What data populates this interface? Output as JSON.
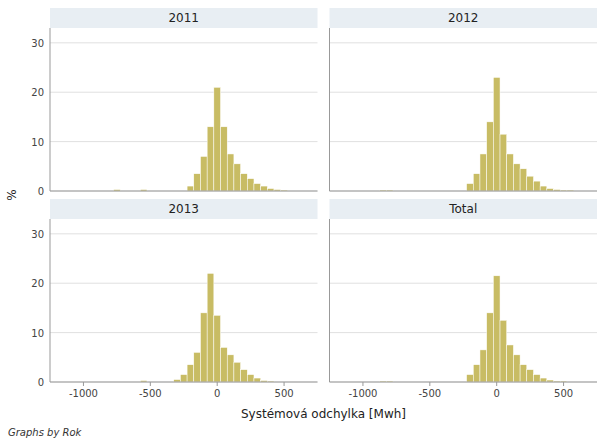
{
  "chart_data": [
    {
      "type": "histogram",
      "title": "2011",
      "color": "#c8bc64",
      "bin_width": 50,
      "x": [
        -750,
        -550,
        -200,
        -150,
        -100,
        -50,
        0,
        50,
        100,
        150,
        200,
        250,
        300,
        350,
        400,
        450,
        500
      ],
      "values": [
        0.3,
        0.3,
        1.0,
        3.5,
        7.0,
        13.0,
        21.0,
        13.0,
        7.5,
        5.5,
        3.5,
        2.5,
        1.5,
        1.0,
        0.5,
        0.3,
        0.2
      ],
      "xlim": [
        -1250,
        750
      ],
      "xticks": [
        -1000,
        -500,
        0,
        500
      ],
      "ylim": [
        0,
        33
      ],
      "yticks": [
        0,
        10,
        20,
        30
      ],
      "grid": true,
      "tick_labels": "y"
    },
    {
      "type": "histogram",
      "title": "2012",
      "color": "#c8bc64",
      "bin_width": 50,
      "x": [
        -850,
        -800,
        -200,
        -150,
        -100,
        -50,
        0,
        50,
        100,
        150,
        200,
        250,
        300,
        350,
        400,
        450,
        500,
        550
      ],
      "values": [
        0.2,
        0.2,
        1.5,
        3.5,
        7.5,
        14.0,
        23.0,
        11.5,
        7.5,
        5.5,
        4.5,
        3.0,
        2.0,
        1.0,
        0.5,
        0.3,
        0.2,
        0.2
      ],
      "xlim": [
        -1250,
        750
      ],
      "xticks": [
        -1000,
        -500,
        0,
        500
      ],
      "ylim": [
        0,
        33
      ],
      "yticks": [
        0,
        10,
        20,
        30
      ],
      "grid": true,
      "tick_labels": false
    },
    {
      "type": "histogram",
      "title": "2013",
      "color": "#c8bc64",
      "bin_width": 50,
      "x": [
        -550,
        -300,
        -250,
        -200,
        -150,
        -100,
        -50,
        0,
        50,
        100,
        150,
        200,
        250,
        300,
        350,
        400
      ],
      "values": [
        0.3,
        0.5,
        1.5,
        3.5,
        6.0,
        14.0,
        22.0,
        13.5,
        7.0,
        5.5,
        4.0,
        2.5,
        1.5,
        0.8,
        0.3,
        0.2
      ],
      "xlim": [
        -1250,
        750
      ],
      "xticks": [
        -1000,
        -500,
        0,
        500
      ],
      "ylim": [
        0,
        33
      ],
      "yticks": [
        0,
        10,
        20,
        30
      ],
      "grid": true
    },
    {
      "type": "histogram",
      "title": "Total",
      "color": "#c8bc64",
      "bin_width": 50,
      "x": [
        -850,
        -800,
        -200,
        -150,
        -100,
        -50,
        0,
        50,
        100,
        150,
        200,
        250,
        300,
        350,
        400,
        450,
        500
      ],
      "values": [
        0.2,
        0.2,
        1.5,
        3.5,
        6.5,
        14.0,
        21.5,
        12.5,
        7.5,
        5.5,
        3.5,
        2.5,
        1.5,
        0.8,
        0.4,
        0.2,
        0.2
      ],
      "xlim": [
        -1250,
        750
      ],
      "xticks": [
        -1000,
        -500,
        0,
        500
      ],
      "ylim": [
        0,
        33
      ],
      "yticks": [
        0,
        10,
        20,
        30
      ],
      "grid": true,
      "tick_labels": "x"
    }
  ],
  "xlabel": "Systémová odchylka [Mwh]",
  "ylabel": "%",
  "footer": "Graphs by Rok"
}
